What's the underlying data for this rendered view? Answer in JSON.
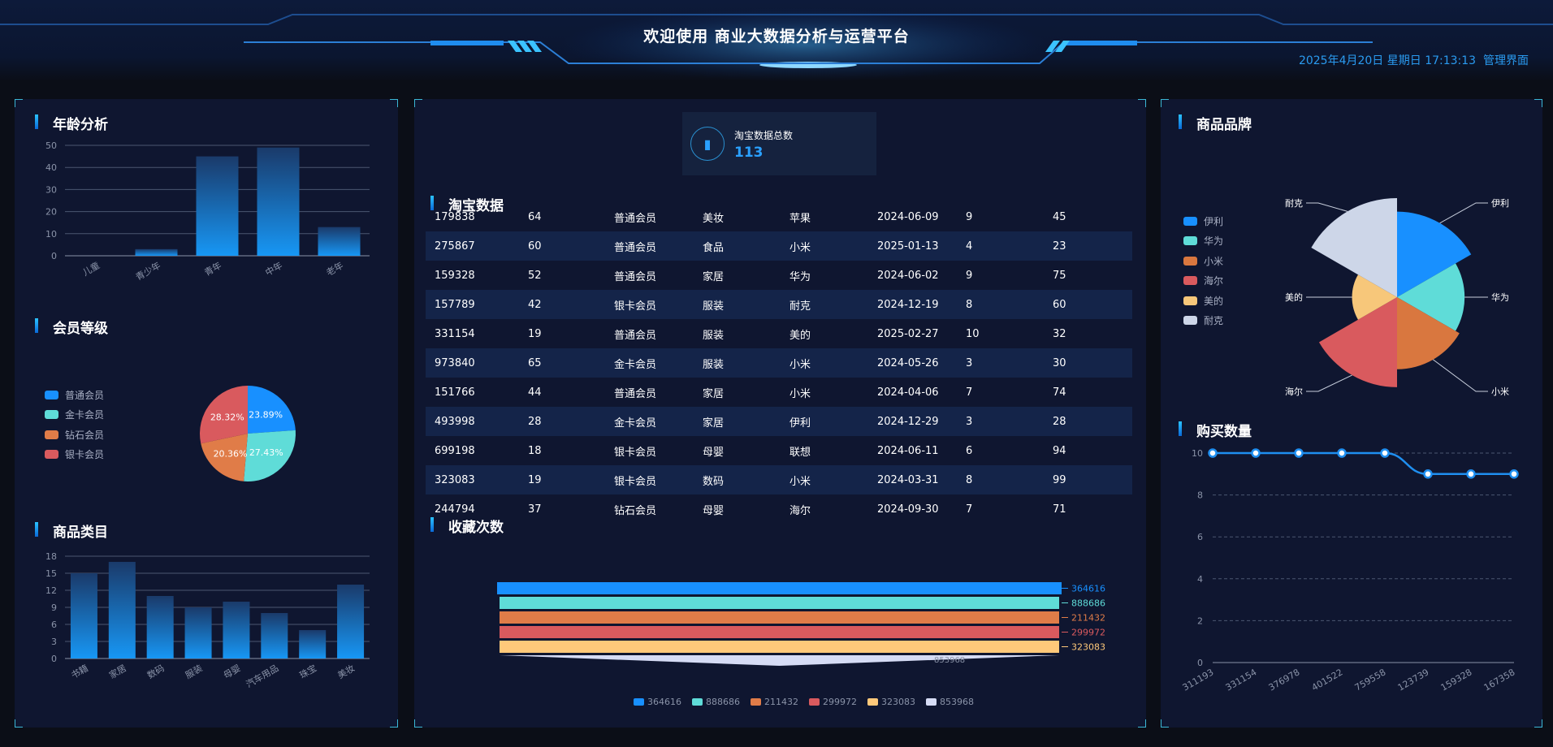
{
  "header": {
    "title": "欢迎使用 商业大数据分析与运营平台",
    "datetime": "2025年4月20日 星期日 17:13:13",
    "admin_link": "管理界面"
  },
  "age": {
    "title": "年龄分析",
    "chart_data": {
      "type": "bar",
      "categories": [
        "儿童",
        "青少年",
        "青年",
        "中年",
        "老年"
      ],
      "values": [
        0,
        3,
        45,
        49,
        13
      ],
      "ylim": [
        0,
        50
      ],
      "yticks": [
        0,
        10,
        20,
        30,
        40,
        50
      ],
      "grid": true
    }
  },
  "member": {
    "title": "会员等级",
    "chart_data": {
      "type": "pie",
      "categories": [
        "普通会员",
        "金卡会员",
        "钻石会员",
        "银卡会员"
      ],
      "values": [
        23.89,
        27.43,
        20.36,
        28.32
      ],
      "labels": [
        "23.89%",
        "27.43%",
        "20.36%",
        "28.32%"
      ],
      "colors": [
        "#1890ff",
        "#5fdcd8",
        "#e07c48",
        "#d95a5e"
      ],
      "legend": "left"
    }
  },
  "category": {
    "title": "商品类目",
    "chart_data": {
      "type": "bar",
      "categories": [
        "书籍",
        "家居",
        "数码",
        "服装",
        "母婴",
        "汽车用品",
        "珠宝",
        "美妆"
      ],
      "values": [
        15,
        17,
        11,
        9,
        10,
        8,
        5,
        13
      ],
      "ylim": [
        0,
        18
      ],
      "yticks": [
        0,
        3,
        6,
        9,
        12,
        15,
        18
      ],
      "grid": true
    }
  },
  "kpi": {
    "label": "淘宝数据总数",
    "value": "113",
    "icon": "building-icon"
  },
  "taobao": {
    "title": "淘宝数据",
    "rows": [
      [
        "179838",
        "64",
        "普通会员",
        "美妆",
        "苹果",
        "2024-06-09",
        "9",
        "45"
      ],
      [
        "275867",
        "60",
        "普通会员",
        "食品",
        "小米",
        "2025-01-13",
        "4",
        "23"
      ],
      [
        "159328",
        "52",
        "普通会员",
        "家居",
        "华为",
        "2024-06-02",
        "9",
        "75"
      ],
      [
        "157789",
        "42",
        "银卡会员",
        "服装",
        "耐克",
        "2024-12-19",
        "8",
        "60"
      ],
      [
        "331154",
        "19",
        "普通会员",
        "服装",
        "美的",
        "2025-02-27",
        "10",
        "32"
      ],
      [
        "973840",
        "65",
        "金卡会员",
        "服装",
        "小米",
        "2024-05-26",
        "3",
        "30"
      ],
      [
        "151766",
        "44",
        "普通会员",
        "家居",
        "小米",
        "2024-04-06",
        "7",
        "74"
      ],
      [
        "493998",
        "28",
        "金卡会员",
        "家居",
        "伊利",
        "2024-12-29",
        "3",
        "28"
      ],
      [
        "699198",
        "18",
        "银卡会员",
        "母婴",
        "联想",
        "2024-06-11",
        "6",
        "94"
      ],
      [
        "323083",
        "19",
        "银卡会员",
        "数码",
        "小米",
        "2024-03-31",
        "8",
        "99"
      ],
      [
        "244794",
        "37",
        "钻石会员",
        "母婴",
        "海尔",
        "2024-09-30",
        "7",
        "71"
      ]
    ]
  },
  "favorites": {
    "title": "收藏次数",
    "chart_data": {
      "type": "funnel",
      "categories": [
        "364616",
        "888686",
        "211432",
        "299972",
        "323083",
        "853968"
      ],
      "labels": [
        "364616",
        "888686",
        "211432",
        "299972",
        "323083",
        "853968"
      ],
      "colors": [
        "#1890ff",
        "#5fdcd8",
        "#e07c48",
        "#d95a5e",
        "#ffc97a",
        "#d6dcf5"
      ],
      "legend": "bottom"
    }
  },
  "brand": {
    "title": "商品品牌",
    "chart_data": {
      "type": "pie",
      "rose": true,
      "categories": [
        "伊利",
        "华为",
        "小米",
        "海尔",
        "美的",
        "耐克"
      ],
      "values": [
        19,
        15,
        16,
        20,
        10,
        22
      ],
      "colors": [
        "#1890ff",
        "#5fdcd8",
        "#d9773f",
        "#d95a5e",
        "#f7c77a",
        "#cdd6e8"
      ],
      "legend": "left"
    }
  },
  "purchase": {
    "title": "购买数量",
    "chart_data": {
      "type": "line",
      "categories": [
        "311193",
        "331154",
        "376978",
        "401522",
        "759558",
        "123739",
        "159328",
        "167358"
      ],
      "values": [
        10,
        10,
        10,
        10,
        10,
        9,
        9,
        9
      ],
      "ylim": [
        0,
        10
      ],
      "yticks": [
        0,
        2,
        4,
        6,
        8,
        10
      ],
      "grid": true,
      "smooth": true
    }
  }
}
